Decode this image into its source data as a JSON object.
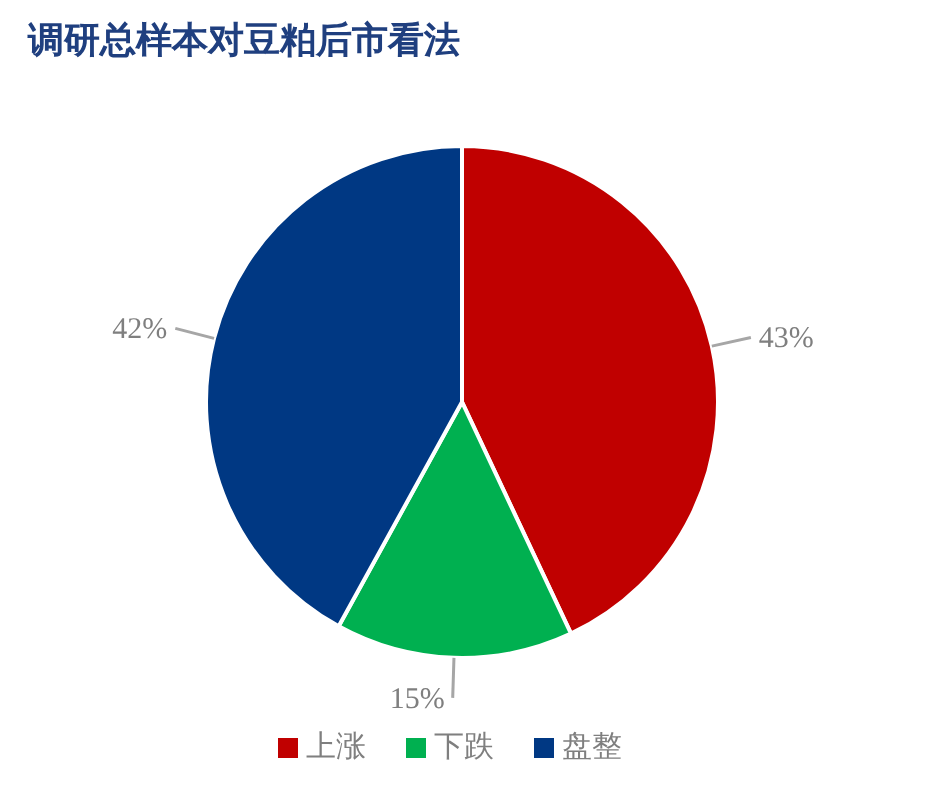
{
  "chart_data": {
    "type": "pie",
    "title": "调研总样本对豆粕后市看法",
    "categories": [
      "上涨",
      "下跌",
      "盘整"
    ],
    "values": [
      43,
      15,
      42
    ],
    "value_labels": [
      "43%",
      "15%",
      "42%"
    ],
    "colors": [
      "#c00000",
      "#00b050",
      "#003883"
    ],
    "legend": "bottom"
  }
}
